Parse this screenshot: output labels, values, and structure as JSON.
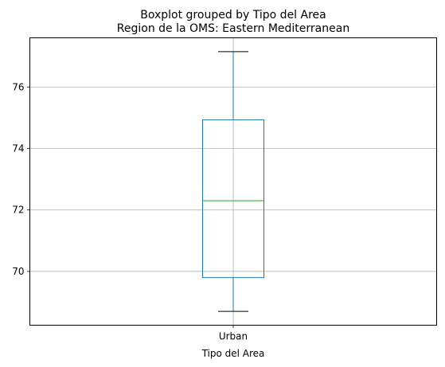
{
  "chart_data": {
    "type": "boxplot",
    "suptitle": "Boxplot grouped by Tipo del Area",
    "title": "Region de la OMS: Eastern Mediterranean",
    "xlabel": "Tipo del Area",
    "ylabel": "",
    "categories": [
      "Urban"
    ],
    "boxes": [
      {
        "category": "Urban",
        "whisker_low": 68.7,
        "q1": 69.8,
        "median": 72.3,
        "q3": 74.93,
        "whisker_high": 77.15
      }
    ],
    "ylim": [
      68.25,
      77.6
    ],
    "yticks": [
      70,
      72,
      74,
      76
    ],
    "grid": true,
    "colors": {
      "box": "#1f77b4",
      "median": "#2ca02c",
      "whisker": "#1f77b4",
      "cap": "#000000",
      "grid": "#b0b0b0"
    }
  }
}
